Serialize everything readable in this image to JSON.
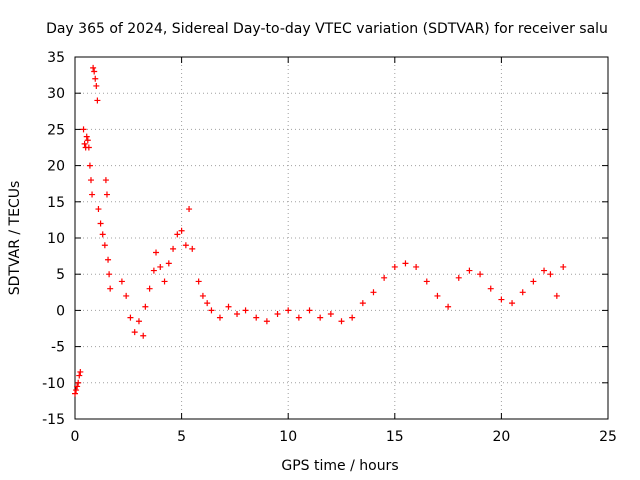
{
  "chart_data": {
    "type": "scatter",
    "title": "Day 365 of 2024, Sidereal Day-to-day VTEC variation (SDTVAR) for receiver salu",
    "xlabel": "GPS time / hours",
    "ylabel": "SDTVAR / TECUs",
    "xlim": [
      0,
      25
    ],
    "ylim": [
      -15,
      35
    ],
    "xticks": [
      "0",
      "5",
      "10",
      "15",
      "20",
      "25"
    ],
    "yticks": [
      "35",
      "30",
      "25",
      "20",
      "15",
      "10",
      "5",
      "0",
      "-5",
      "-10",
      "-15"
    ],
    "grid": true,
    "marker": "+",
    "series": [
      {
        "name": "SDTVAR",
        "color": "#ff0000",
        "x": [
          0.0,
          0.05,
          0.1,
          0.15,
          0.2,
          0.25,
          0.4,
          0.45,
          0.5,
          0.55,
          0.6,
          0.65,
          0.7,
          0.75,
          0.8,
          0.85,
          0.9,
          0.95,
          1.0,
          1.05,
          1.1,
          1.2,
          1.3,
          1.4,
          1.45,
          1.5,
          1.55,
          1.6,
          1.65,
          2.2,
          2.4,
          2.6,
          2.8,
          3.0,
          3.2,
          3.3,
          3.5,
          3.7,
          3.8,
          4.0,
          4.2,
          4.4,
          4.6,
          4.8,
          5.0,
          5.2,
          5.35,
          5.5,
          5.8,
          6.0,
          6.2,
          6.4,
          6.8,
          7.2,
          7.6,
          8.0,
          8.5,
          9.0,
          9.5,
          10.0,
          10.5,
          11.0,
          11.5,
          12.0,
          12.5,
          13.0,
          13.5,
          14.0,
          14.5,
          15.0,
          15.5,
          16.0,
          16.5,
          17.0,
          17.5,
          18.0,
          18.5,
          19.0,
          19.5,
          20.0,
          20.5,
          21.0,
          21.5,
          22.0,
          22.3,
          22.6,
          22.9
        ],
        "y": [
          -11.5,
          -11.0,
          -10.5,
          -10.0,
          -9.0,
          -8.5,
          25.0,
          23.0,
          22.5,
          24.0,
          23.5,
          22.5,
          20.0,
          18.0,
          16.0,
          33.5,
          33.0,
          32.0,
          31.0,
          29.0,
          14.0,
          12.0,
          10.5,
          9.0,
          18.0,
          16.0,
          7.0,
          5.0,
          3.0,
          4.0,
          2.0,
          -1.0,
          -3.0,
          -1.5,
          -3.5,
          0.5,
          3.0,
          5.5,
          8.0,
          6.0,
          4.0,
          6.5,
          8.5,
          10.5,
          11.0,
          9.0,
          14.0,
          8.5,
          4.0,
          2.0,
          1.0,
          0.0,
          -1.0,
          0.5,
          -0.5,
          0.0,
          -1.0,
          -1.5,
          -0.5,
          0.0,
          -1.0,
          0.0,
          -1.0,
          -0.5,
          -1.5,
          -1.0,
          1.0,
          2.5,
          4.5,
          6.0,
          6.5,
          6.0,
          4.0,
          2.0,
          0.5,
          4.5,
          5.5,
          5.0,
          3.0,
          1.5,
          1.0,
          2.5,
          4.0,
          5.5,
          5.0,
          2.0,
          6.0
        ]
      }
    ]
  }
}
